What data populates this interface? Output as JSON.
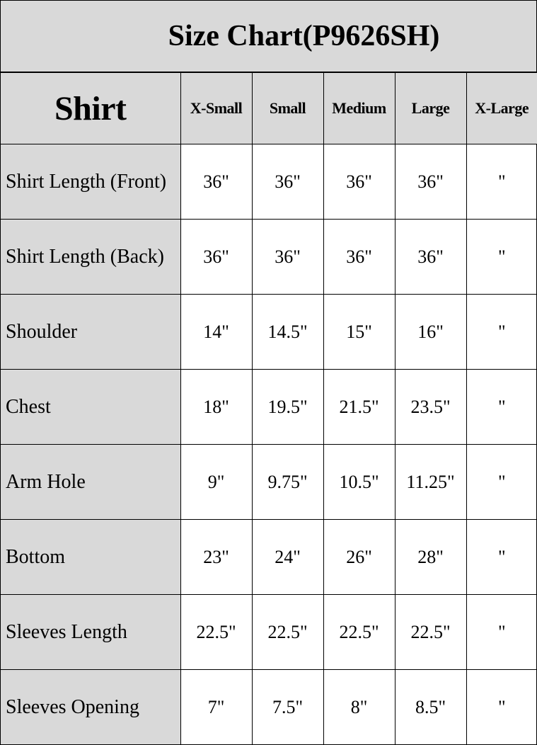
{
  "title": "Size Chart(P9626SH)",
  "chart_data": {
    "type": "table",
    "title": "Size Chart(P9626SH)",
    "corner_header": "Shirt",
    "columns": [
      "X-Small",
      "Small",
      "Medium",
      "Large",
      "X-Large"
    ],
    "rows": [
      {
        "label": "Shirt Length (Front)",
        "values": [
          "36\"",
          "36\"",
          "36\"",
          "36\"",
          "\""
        ]
      },
      {
        "label": "Shirt Length (Back)",
        "values": [
          "36\"",
          "36\"",
          "36\"",
          "36\"",
          "\""
        ]
      },
      {
        "label": "Shoulder",
        "values": [
          "14\"",
          "14.5\"",
          "15\"",
          "16\"",
          "\""
        ]
      },
      {
        "label": "Chest",
        "values": [
          "18\"",
          "19.5\"",
          "21.5\"",
          "23.5\"",
          "\""
        ]
      },
      {
        "label": "Arm Hole",
        "values": [
          "9\"",
          "9.75\"",
          "10.5\"",
          "11.25\"",
          "\""
        ]
      },
      {
        "label": "Bottom",
        "values": [
          "23\"",
          "24\"",
          "26\"",
          "28\"",
          "\""
        ]
      },
      {
        "label": "Sleeves Length",
        "values": [
          "22.5\"",
          "22.5\"",
          "22.5\"",
          "22.5\"",
          "\""
        ]
      },
      {
        "label": "Sleeves Opening",
        "values": [
          "7\"",
          "7.5\"",
          "8\"",
          "8.5\"",
          "\""
        ]
      }
    ],
    "colors": {
      "header_bg": "#d9d9d9",
      "cell_bg": "#ffffff",
      "border": "#000000"
    }
  }
}
